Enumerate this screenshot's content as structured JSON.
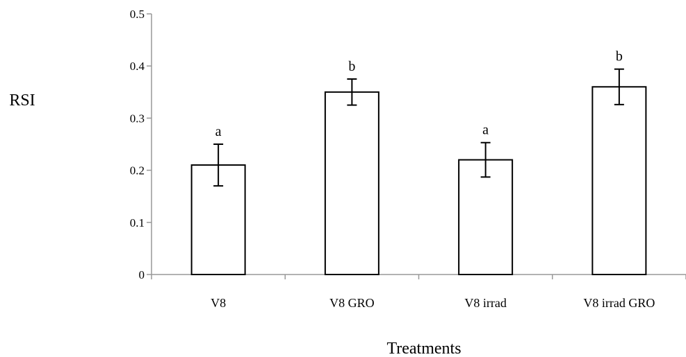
{
  "chart_data": {
    "type": "bar",
    "categories": [
      "V8",
      "V8 GRO",
      "V8 irrad",
      "V8 irrad GRO"
    ],
    "values": [
      0.21,
      0.35,
      0.22,
      0.36
    ],
    "error_bars": [
      0.04,
      0.025,
      0.033,
      0.034
    ],
    "significance_letters": [
      "a",
      "b",
      "a",
      "b"
    ],
    "xlabel": "Treatments",
    "ylabel": "RSI",
    "ylim": [
      0,
      0.5
    ],
    "yticks": [
      "0",
      "0.1",
      "0.2",
      "0.3",
      "0.4",
      "0.5"
    ],
    "grid": false,
    "legend": "none",
    "bar_fill": "#ffffff",
    "bar_stroke": "#000000",
    "axis_color": "#999999"
  }
}
